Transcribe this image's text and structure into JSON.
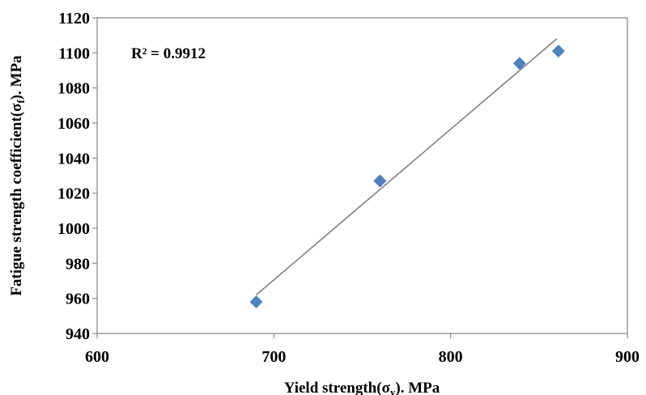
{
  "chart_data": {
    "type": "scatter",
    "xlabel": "Yield strength(σ",
    "xlabel_sub": "y",
    "xlabel_suffix": "). MPa",
    "ylabel": "Fatigue strength coefficient(σ",
    "ylabel_sub": "f",
    "ylabel_suffix": "). MPa",
    "xlim": [
      600,
      900
    ],
    "ylim": [
      940,
      1120
    ],
    "x_ticks": [
      "600",
      "700",
      "800",
      "900"
    ],
    "y_ticks": [
      "940",
      "960",
      "980",
      "1000",
      "1020",
      "1040",
      "1060",
      "1080",
      "1100",
      "1120"
    ],
    "points": [
      {
        "x": 690,
        "y": 958
      },
      {
        "x": 760,
        "y": 1027
      },
      {
        "x": 839,
        "y": 1094
      },
      {
        "x": 861,
        "y": 1101
      }
    ],
    "trendline": {
      "x": [
        690,
        860
      ],
      "y": [
        962,
        1108
      ]
    },
    "annotation": "R² = 0.9912",
    "marker_color": "#4f81bd",
    "line_color": "#7f7f7f",
    "grid": false
  }
}
